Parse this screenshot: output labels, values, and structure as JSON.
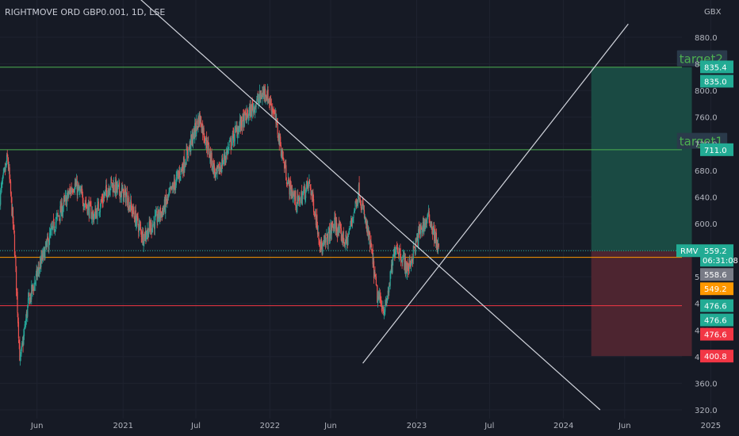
{
  "header": {
    "title": "RIGHTMOVE ORD GBP0.001, 1D, LSE"
  },
  "chart_data": {
    "type": "candlestick",
    "currency": "GBX",
    "symbol": "RMV",
    "ylim": [
      320,
      900
    ],
    "y_ticks": [
      320,
      360,
      400,
      440,
      480,
      520,
      560,
      600,
      640,
      680,
      720,
      760,
      800,
      840,
      880
    ],
    "y_tick_labels": [
      "320.0",
      "360.0",
      "400.0",
      "440.0",
      "480.0",
      "520.0",
      "560.0",
      "600.0",
      "640.0",
      "680.0",
      "720.0",
      "760.0",
      "800.0",
      "840.0",
      "880.0"
    ],
    "x_range": [
      "2020-03-01",
      "2025-04-01"
    ],
    "x_ticks": [
      {
        "label": "Jun",
        "date": "2020-06-01"
      },
      {
        "label": "2021",
        "date": "2021-01-01"
      },
      {
        "label": "Jul",
        "date": "2021-07-01"
      },
      {
        "label": "2022",
        "date": "2022-01-01"
      },
      {
        "label": "Jun",
        "date": "2022-06-01"
      },
      {
        "label": "2023",
        "date": "2023-01-01"
      },
      {
        "label": "Jul",
        "date": "2023-07-01"
      },
      {
        "label": "2024",
        "date": "2024-01-01"
      },
      {
        "label": "Jun",
        "date": "2024-06-01"
      },
      {
        "label": "2025",
        "date": "2025-01-01"
      }
    ],
    "price_path": [
      {
        "date": "2020-03-01",
        "price": 640
      },
      {
        "date": "2020-03-20",
        "price": 700
      },
      {
        "date": "2020-04-05",
        "price": 580
      },
      {
        "date": "2020-04-20",
        "price": 390
      },
      {
        "date": "2020-05-10",
        "price": 480
      },
      {
        "date": "2020-06-10",
        "price": 540
      },
      {
        "date": "2020-07-15",
        "price": 600
      },
      {
        "date": "2020-09-01",
        "price": 660
      },
      {
        "date": "2020-10-20",
        "price": 610
      },
      {
        "date": "2020-12-01",
        "price": 660
      },
      {
        "date": "2021-01-10",
        "price": 640
      },
      {
        "date": "2021-02-20",
        "price": 580
      },
      {
        "date": "2021-04-10",
        "price": 620
      },
      {
        "date": "2021-06-01",
        "price": 690
      },
      {
        "date": "2021-07-10",
        "price": 760
      },
      {
        "date": "2021-08-20",
        "price": 670
      },
      {
        "date": "2021-10-10",
        "price": 740
      },
      {
        "date": "2021-12-20",
        "price": 800
      },
      {
        "date": "2022-01-10",
        "price": 770
      },
      {
        "date": "2022-02-15",
        "price": 660
      },
      {
        "date": "2022-03-10",
        "price": 630
      },
      {
        "date": "2022-04-10",
        "price": 660
      },
      {
        "date": "2022-05-10",
        "price": 560
      },
      {
        "date": "2022-06-10",
        "price": 600
      },
      {
        "date": "2022-07-10",
        "price": 570
      },
      {
        "date": "2022-08-10",
        "price": 650
      },
      {
        "date": "2022-09-10",
        "price": 560
      },
      {
        "date": "2022-09-25",
        "price": 490
      },
      {
        "date": "2022-10-15",
        "price": 470
      },
      {
        "date": "2022-11-10",
        "price": 570
      },
      {
        "date": "2022-12-10",
        "price": 530
      },
      {
        "date": "2023-01-10",
        "price": 590
      },
      {
        "date": "2023-02-01",
        "price": 610
      },
      {
        "date": "2023-02-25",
        "price": 559
      }
    ],
    "horizontal_lines": [
      {
        "price": 835.0,
        "color": "#4caf50"
      },
      {
        "price": 711.0,
        "color": "#4caf50"
      },
      {
        "price": 549.2,
        "color": "#ff9800"
      },
      {
        "price": 476.6,
        "color": "#f23645"
      }
    ],
    "trend_lines": [
      {
        "from": {
          "date": "2021-01-20",
          "price": 950
        },
        "to": {
          "date": "2024-04-01",
          "price": 320
        }
      },
      {
        "from": {
          "date": "2022-08-20",
          "price": 390
        },
        "to": {
          "date": "2024-06-10",
          "price": 900
        }
      }
    ],
    "position": {
      "start": "2024-03-10",
      "end": "2024-11-15",
      "entry": 558.6,
      "target": 835.0,
      "stop": 400.8,
      "profit_color": "#1a4a43",
      "loss_color": "#4d2530"
    },
    "annotations": [
      {
        "text": "target2",
        "date": "2024-10-15",
        "price": 846
      },
      {
        "text": "target1",
        "date": "2024-10-15",
        "price": 722
      }
    ],
    "price_tags": [
      {
        "text": "835.4",
        "price": 835.4,
        "bg": "#22ab94"
      },
      {
        "text": "835.0",
        "price": 835.0,
        "bg": "#22ab94"
      },
      {
        "text": "711.0",
        "price": 711.0,
        "bg": "#22ab94"
      },
      {
        "text": "559.2",
        "price": 559.2,
        "bg": "#22ab94",
        "subtext": "06:31:08"
      },
      {
        "text": "558.6",
        "price": 551.0,
        "bg": "#787b86"
      },
      {
        "text": "549.2",
        "price": 549.2,
        "bg": "#ff9800"
      },
      {
        "text": "476.6",
        "price": 476.6,
        "bg": "#22ab94"
      },
      {
        "text": "476.6",
        "price": 476.6,
        "bg": "#22ab94"
      },
      {
        "text": "476.6",
        "price": 476.6,
        "bg": "#f23645"
      },
      {
        "text": "400.8",
        "price": 400.8,
        "bg": "#f23645"
      }
    ],
    "last_price_badge": {
      "text": "RMV",
      "price": 559.2,
      "color": "#22ab94"
    },
    "colors": {
      "up": "#26a69a",
      "down": "#ef5350",
      "background": "#161a25",
      "grid": "#1f2330",
      "axis_text": "#b2b5be",
      "trend_line": "#d1d4dc"
    }
  }
}
